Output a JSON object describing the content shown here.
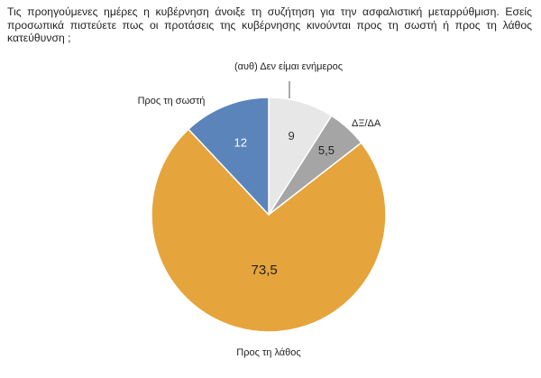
{
  "question": "Τις προηγούμενες ημέρες η κυβέρνηση άνοιξε τη συζήτηση για την ασφαλιστική μεταρρύθμιση. Εσείς προσωπικά πιστεύετε πως οι προτάσεις της κυβέρνησης κινούνται προς τη σωστή ή προς τη λάθος κατεύθυνση ;",
  "chart_data": {
    "type": "pie",
    "title": "",
    "start": "12 o'clock",
    "direction": "clockwise",
    "slices": [
      {
        "label": "(αυθ) Δεν είμαι ενήμερος",
        "value": 9,
        "value_label": "9",
        "color": "#e7e7e7",
        "value_color": "#333333"
      },
      {
        "label": "ΔΞ/ΔΑ",
        "value": 5.5,
        "value_label": "5,5",
        "color": "#a5a5a5",
        "value_color": "#222222"
      },
      {
        "label": "Προς τη λάθος",
        "value": 73.5,
        "value_label": "73,5",
        "color": "#e5a43c",
        "value_color": "#222222"
      },
      {
        "label": "Προς τη σωστή",
        "value": 12,
        "value_label": "12",
        "color": "#5b84bb",
        "value_color": "#ffffff"
      }
    ]
  }
}
